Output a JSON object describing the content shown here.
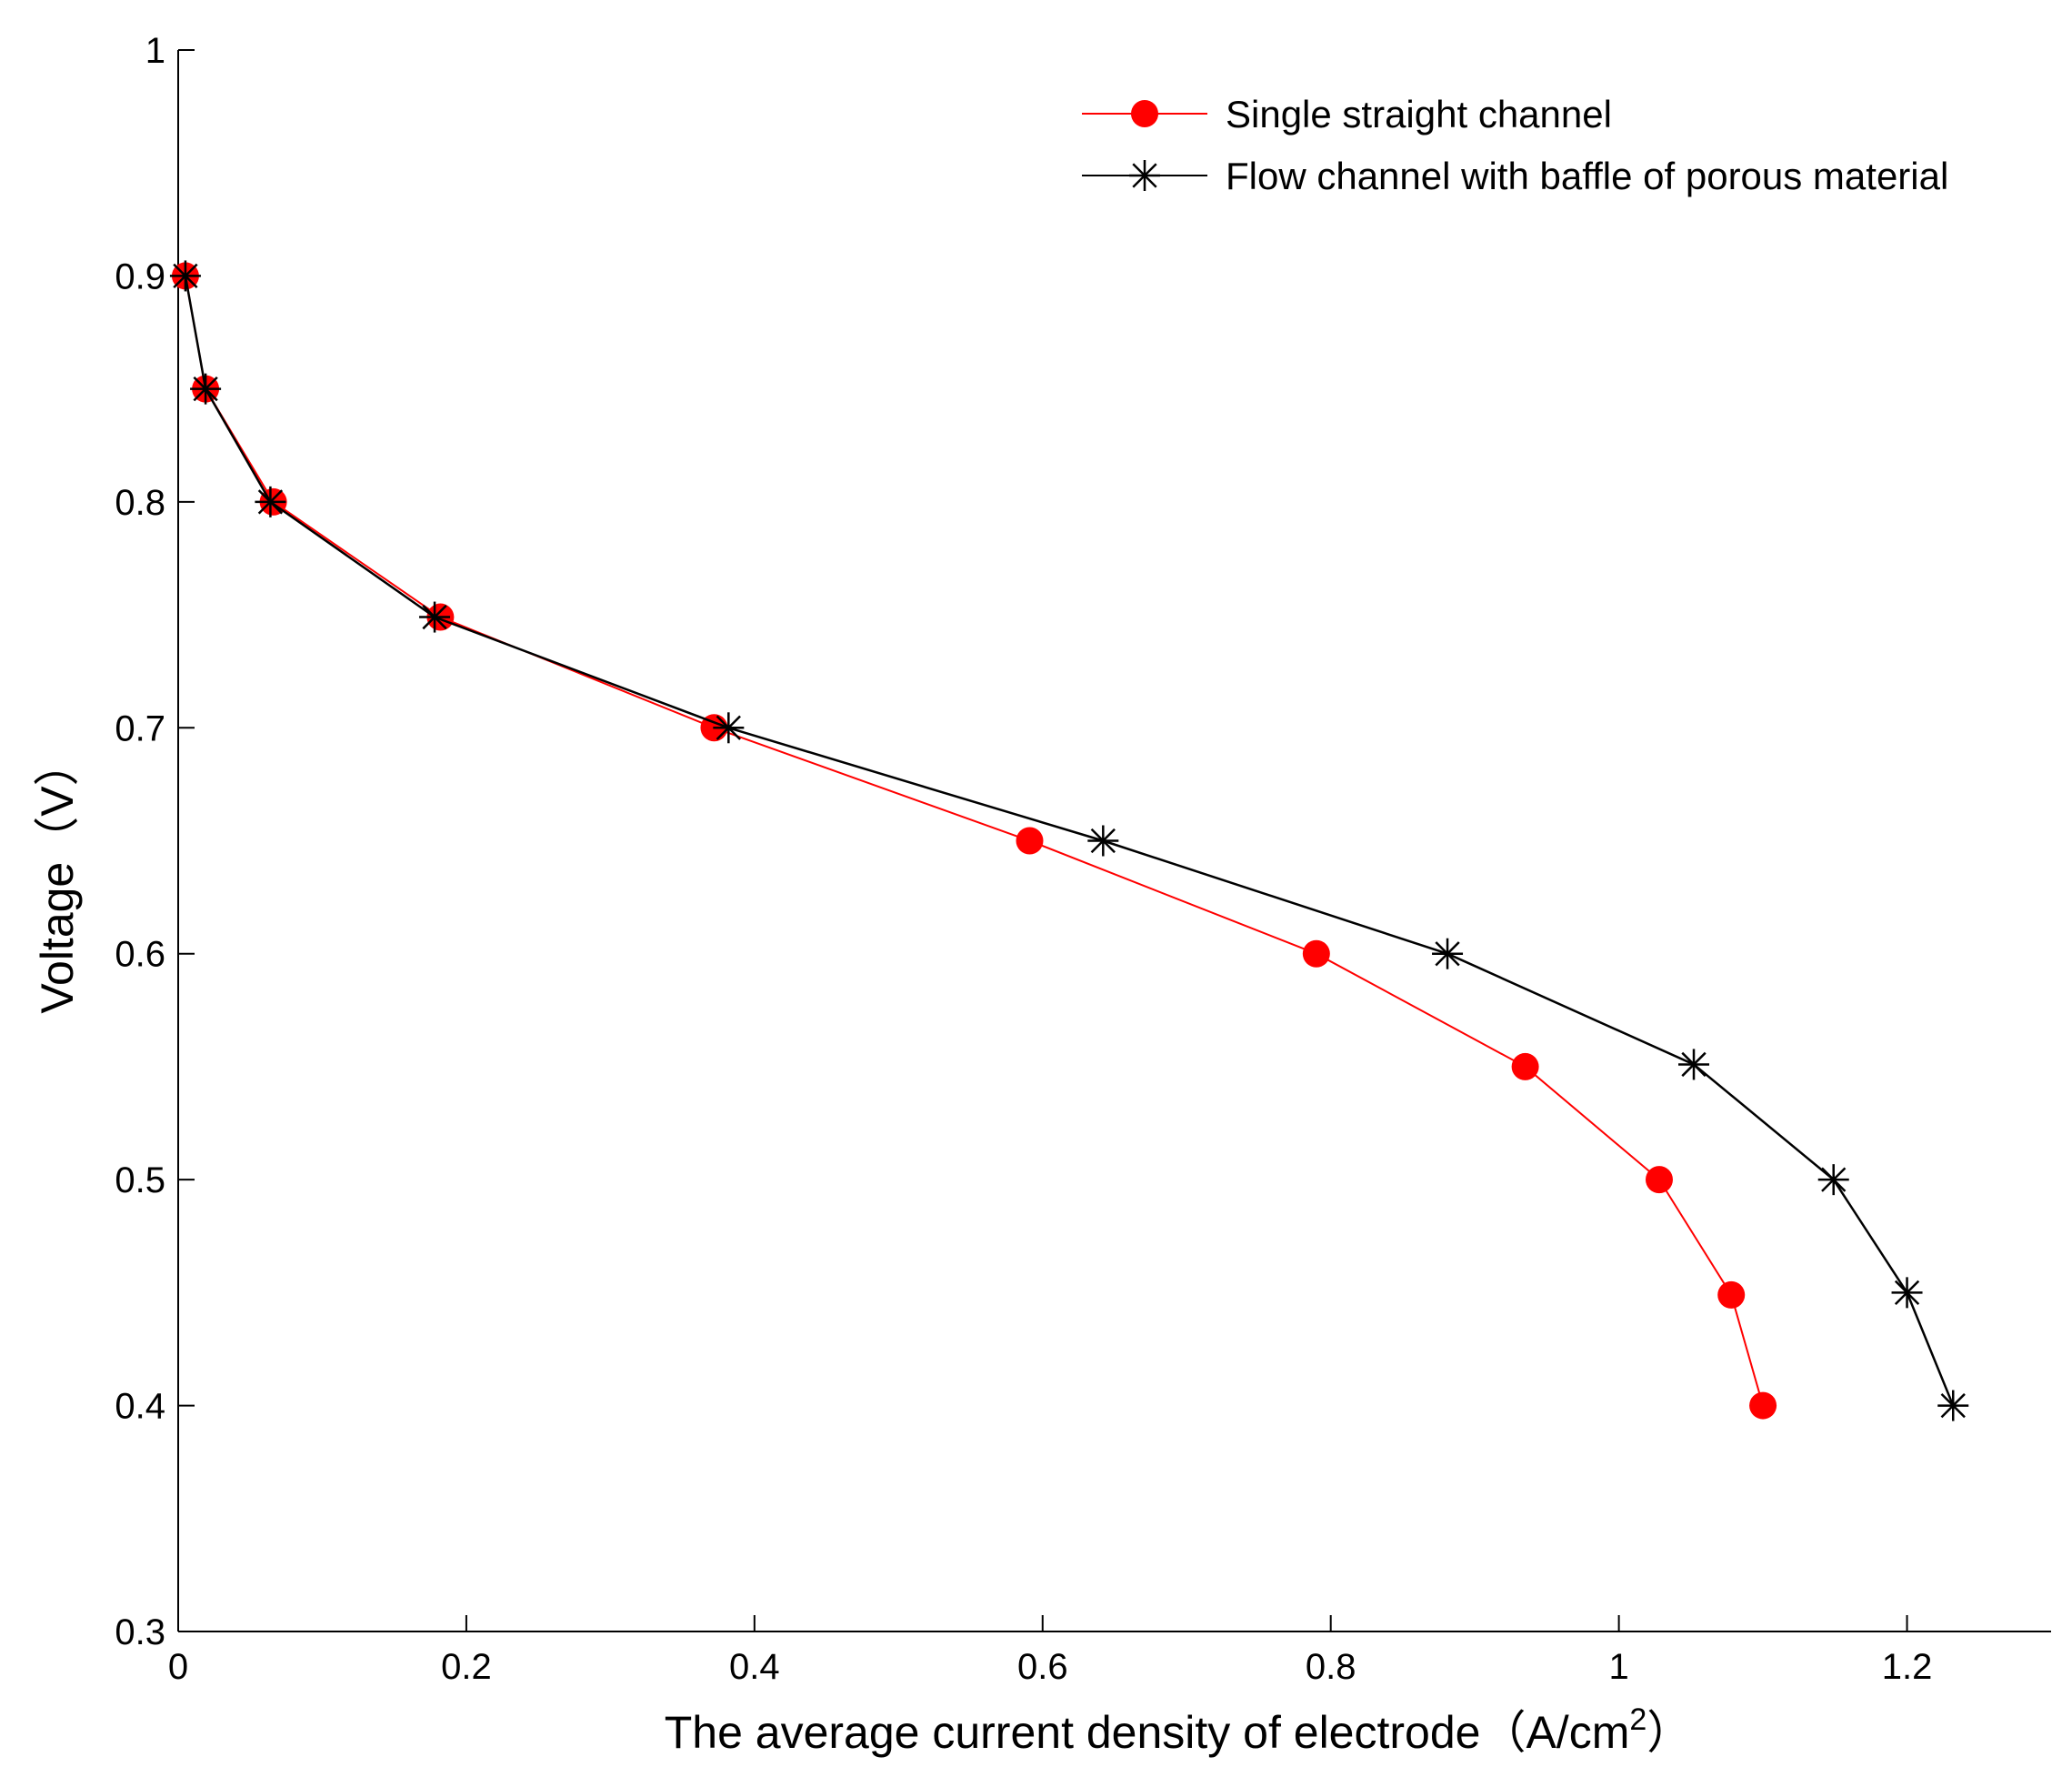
{
  "chart_data": {
    "type": "line",
    "xlabel": "The average current density of electrode（A/cm",
    "xlabel_superscript": "2",
    "xlabel_close": "）",
    "ylabel": "Voltage（V）",
    "xlim": [
      0,
      1.3
    ],
    "ylim": [
      0.3,
      1.0
    ],
    "x_ticks": [
      "0",
      "0.2",
      "0.4",
      "0.6",
      "0.8",
      "1",
      "1.2"
    ],
    "x_tick_values": [
      0,
      0.2,
      0.4,
      0.6,
      0.8,
      1.0,
      1.2
    ],
    "y_ticks": [
      "0.3",
      "0.4",
      "0.5",
      "0.6",
      "0.7",
      "0.8",
      "0.9",
      "1"
    ],
    "y_tick_values": [
      0.3,
      0.4,
      0.5,
      0.6,
      0.7,
      0.8,
      0.9,
      1.0
    ],
    "grid": false,
    "legend_position": "top-right",
    "series": [
      {
        "name": "Single straight channel",
        "color": "#ff0000",
        "marker": "filled-circle",
        "x": [
          0.005,
          0.019,
          0.066,
          0.182,
          0.372,
          0.591,
          0.79,
          0.935,
          1.028,
          1.078,
          1.1
        ],
        "y": [
          0.9,
          0.85,
          0.8,
          0.749,
          0.7,
          0.65,
          0.6,
          0.55,
          0.5,
          0.449,
          0.4
        ]
      },
      {
        "name": "Flow channel with baffle of porous material",
        "color": "#000000",
        "marker": "asterisk",
        "x": [
          0.005,
          0.019,
          0.064,
          0.178,
          0.382,
          0.642,
          0.881,
          1.052,
          1.149,
          1.2,
          1.232
        ],
        "y": [
          0.9,
          0.85,
          0.8,
          0.749,
          0.7,
          0.65,
          0.6,
          0.551,
          0.5,
          0.45,
          0.4
        ]
      }
    ]
  }
}
